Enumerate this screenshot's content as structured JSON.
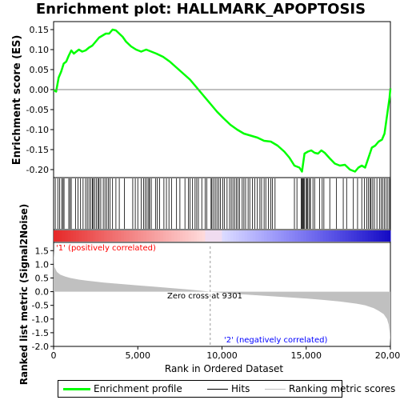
{
  "title": "Enrichment plot: HALLMARK_APOPTOSIS",
  "legend": {
    "enrichment_label": "Enrichment profile",
    "hits_label": "Hits",
    "ranking_label": "Ranking metric scores"
  },
  "colors": {
    "enrichment": "#00ff00",
    "hits": "#000000",
    "ranking_fill": "#c0c0c0",
    "positive": "#ff0000",
    "negative": "#0000ff"
  },
  "annotations": {
    "positive": "'1' (positively correlated)",
    "negative": "'2' (negatively correlated)",
    "zero_cross": "Zero cross at 9301"
  },
  "chart_data": [
    {
      "type": "line",
      "name": "enrichment-profile",
      "title": "Enrichment plot: HALLMARK_APOPTOSIS",
      "ylabel": "Enrichment score (ES)",
      "xlim": [
        0,
        20000
      ],
      "ylim": [
        -0.22,
        0.17
      ],
      "yticks": [
        0.15,
        0.1,
        0.05,
        0.0,
        -0.05,
        -0.1,
        -0.15,
        -0.2
      ],
      "ytick_labels": [
        "0.15",
        "0.10",
        "0.05",
        "0.00",
        "-0.05",
        "-0.10",
        "-0.15",
        "-0.20"
      ],
      "x": [
        0,
        150,
        300,
        450,
        600,
        750,
        900,
        1050,
        1200,
        1350,
        1500,
        1700,
        1900,
        2100,
        2300,
        2500,
        2700,
        2900,
        3100,
        3300,
        3500,
        3700,
        3900,
        4100,
        4300,
        4600,
        4900,
        5200,
        5500,
        5800,
        6100,
        6500,
        6900,
        7300,
        7700,
        8100,
        8500,
        8900,
        9301,
        9700,
        10100,
        10500,
        10900,
        11300,
        11700,
        12100,
        12500,
        12900,
        13300,
        13700,
        14000,
        14300,
        14600,
        14750,
        14900,
        15100,
        15300,
        15500,
        15700,
        15900,
        16100,
        16400,
        16700,
        17000,
        17300,
        17600,
        17900,
        18100,
        18300,
        18500,
        18700,
        18900,
        19100,
        19300,
        19500,
        19650,
        19750,
        19850,
        19950,
        20000
      ],
      "y": [
        0.0,
        -0.005,
        0.03,
        0.045,
        0.065,
        0.07,
        0.085,
        0.098,
        0.09,
        0.095,
        0.1,
        0.095,
        0.098,
        0.105,
        0.11,
        0.12,
        0.13,
        0.135,
        0.14,
        0.14,
        0.15,
        0.148,
        0.14,
        0.132,
        0.12,
        0.108,
        0.1,
        0.095,
        0.1,
        0.095,
        0.09,
        0.082,
        0.07,
        0.055,
        0.04,
        0.025,
        0.005,
        -0.015,
        -0.035,
        -0.055,
        -0.072,
        -0.088,
        -0.1,
        -0.11,
        -0.115,
        -0.12,
        -0.128,
        -0.13,
        -0.14,
        -0.155,
        -0.17,
        -0.19,
        -0.195,
        -0.205,
        -0.16,
        -0.155,
        -0.152,
        -0.158,
        -0.16,
        -0.152,
        -0.158,
        -0.172,
        -0.185,
        -0.19,
        -0.188,
        -0.2,
        -0.205,
        -0.195,
        -0.19,
        -0.195,
        -0.17,
        -0.145,
        -0.14,
        -0.13,
        -0.125,
        -0.11,
        -0.08,
        -0.05,
        -0.02,
        0.003
      ]
    },
    {
      "type": "scatter",
      "name": "hits",
      "xlim": [
        0,
        20000
      ],
      "x": [
        100,
        250,
        350,
        480,
        560,
        620,
        900,
        980,
        1050,
        1300,
        1450,
        1600,
        1750,
        1900,
        2000,
        2100,
        2200,
        2300,
        2350,
        2450,
        2550,
        2650,
        2700,
        2800,
        2950,
        3050,
        3150,
        3250,
        3350,
        3500,
        3700,
        3900,
        4200,
        4700,
        4850,
        5000,
        5200,
        5350,
        5450,
        5550,
        5650,
        5700,
        5800,
        6050,
        6150,
        6300,
        6550,
        6700,
        6850,
        7000,
        7300,
        7500,
        7800,
        8000,
        8100,
        8250,
        8400,
        8500,
        8600,
        8800,
        9000,
        9100,
        9350,
        9400,
        9500,
        9600,
        9700,
        9800,
        9900,
        10050,
        10150,
        10300,
        10450,
        10550,
        10650,
        10750,
        10850,
        10950,
        11050,
        11200,
        11300,
        11400,
        11550,
        11650,
        11800,
        11950,
        12100,
        12250,
        12350,
        12500,
        12600,
        12750,
        12900,
        13000,
        13150,
        14300,
        14450,
        14700,
        14750,
        14800,
        14850,
        14900,
        15000,
        15050,
        15100,
        15200,
        15250,
        15400,
        15500,
        15800,
        15950,
        16050,
        16400,
        16800,
        17200,
        17400,
        17800,
        18050,
        18300,
        18450,
        18600,
        18700,
        18800,
        18850,
        18950,
        19050,
        19200,
        19350,
        19450,
        19550,
        19650,
        19750,
        19850,
        19950
      ]
    },
    {
      "type": "area",
      "name": "ranked-list-metric",
      "ylabel": "Ranked list metric (Signal2Noise)",
      "xlabel": "Rank in Ordered Dataset",
      "xlim": [
        0,
        20000
      ],
      "ylim": [
        -2.0,
        1.8
      ],
      "yticks": [
        1.5,
        1.0,
        0.5,
        0.0,
        -0.5,
        -1.0,
        -1.5,
        -2.0
      ],
      "ytick_labels": [
        "1.5",
        "1.0",
        "0.5",
        "0.0",
        "-0.5",
        "-1.0",
        "-1.5",
        "-2.0"
      ],
      "xticks": [
        0,
        5000,
        10000,
        15000,
        20000
      ],
      "xtick_labels": [
        "0",
        "5,000",
        "10,000",
        "15,000",
        "20,000"
      ],
      "x": [
        0,
        50,
        200,
        400,
        700,
        1000,
        1500,
        2000,
        3000,
        4000,
        5000,
        6000,
        7000,
        8000,
        9000,
        9301,
        10000,
        11000,
        12000,
        13000,
        14000,
        15000,
        16000,
        17000,
        18000,
        18500,
        19000,
        19300,
        19600,
        19800,
        19900,
        19960,
        20000
      ],
      "y": [
        1.55,
        0.9,
        0.72,
        0.62,
        0.55,
        0.5,
        0.44,
        0.4,
        0.33,
        0.28,
        0.23,
        0.18,
        0.13,
        0.08,
        0.02,
        0.0,
        -0.04,
        -0.09,
        -0.13,
        -0.17,
        -0.21,
        -0.25,
        -0.3,
        -0.36,
        -0.44,
        -0.5,
        -0.6,
        -0.7,
        -0.82,
        -1.0,
        -1.2,
        -1.5,
        -1.95
      ]
    }
  ]
}
